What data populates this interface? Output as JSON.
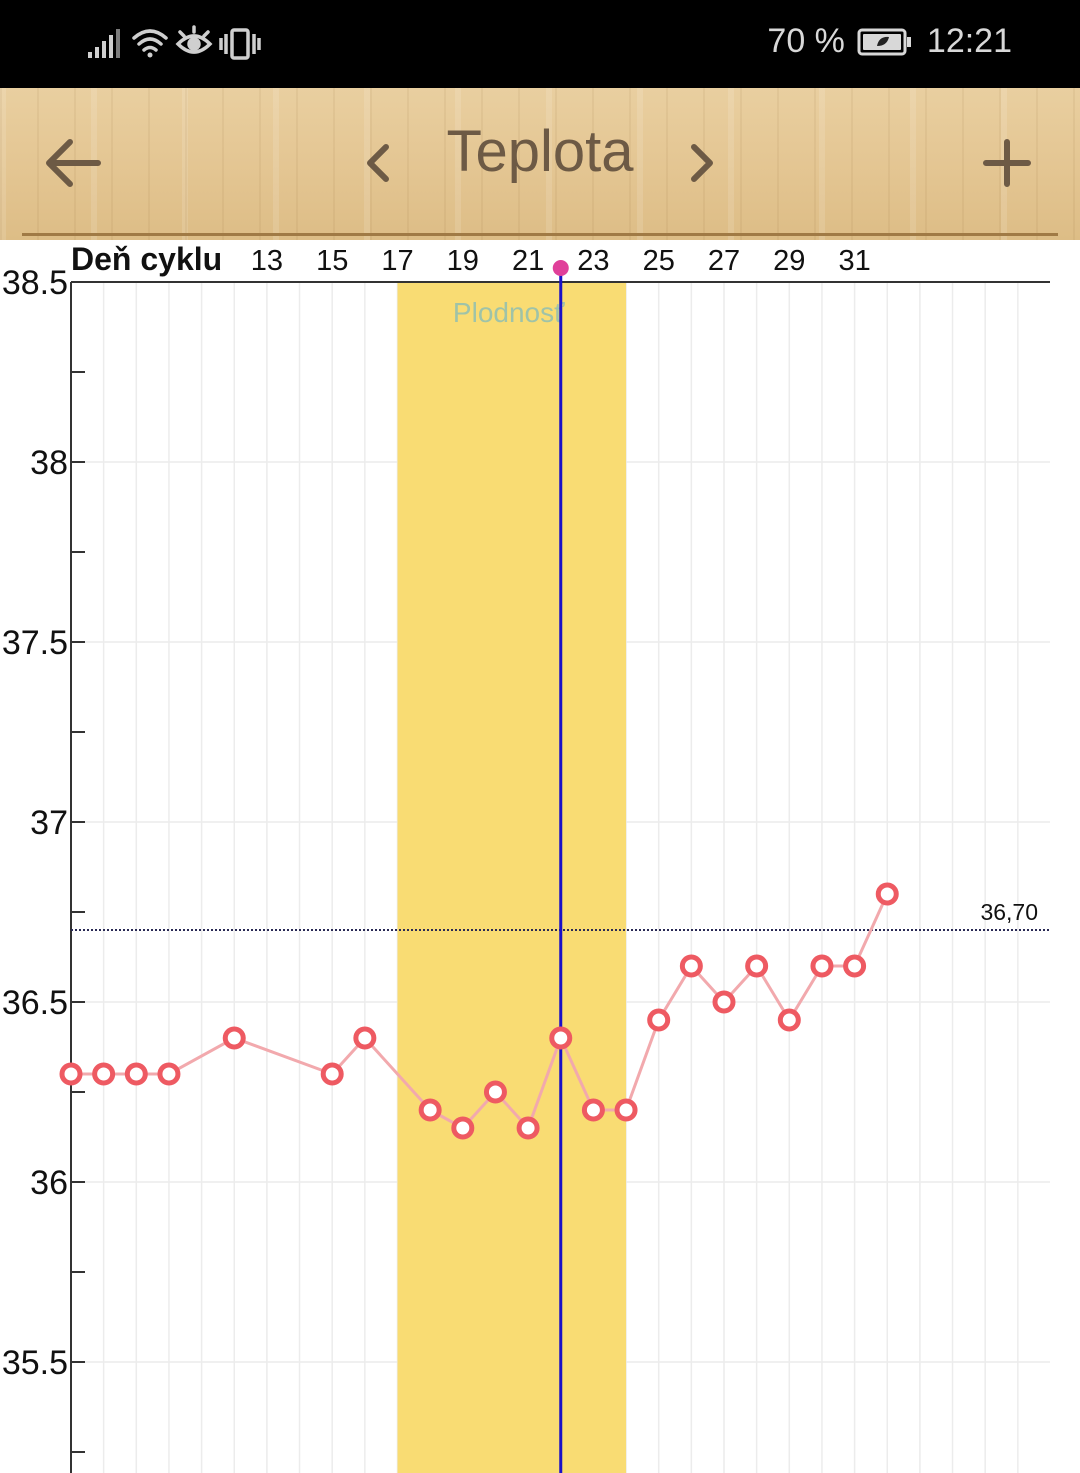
{
  "status_bar": {
    "battery_percent": "70 %",
    "time": "12:21",
    "icons": [
      "signal-icon",
      "wifi-icon",
      "eye-icon",
      "vibrate-icon",
      "battery-icon"
    ]
  },
  "header": {
    "title": "Teplota",
    "icons": [
      "back-arrow-icon",
      "chevron-left-icon",
      "chevron-right-icon",
      "plus-icon"
    ]
  },
  "chart_data": {
    "type": "line",
    "xlabel": "Deň cyklu",
    "x_ticks": [
      13,
      15,
      17,
      19,
      21,
      23,
      25,
      27,
      29,
      31
    ],
    "y_ticks": [
      "38.5",
      "38",
      "37.5",
      "37",
      "36.5",
      "36",
      "35.5"
    ],
    "ylim": [
      35.2,
      38.5
    ],
    "x_range": [
      7,
      37
    ],
    "fertile_window": {
      "label": "Plodnosť",
      "from_day": 17,
      "to_day": 24
    },
    "ovulation_day": 22,
    "threshold": {
      "value": 36.7,
      "label": "36,70"
    },
    "series": [
      {
        "x": [
          7,
          8,
          9,
          10,
          12,
          15,
          16,
          18,
          19,
          20,
          21,
          22,
          23,
          24,
          25,
          26,
          27,
          28,
          29,
          30,
          31,
          32
        ],
        "values": [
          36.3,
          36.3,
          36.3,
          36.3,
          36.4,
          36.3,
          36.4,
          36.2,
          36.15,
          36.25,
          36.15,
          36.4,
          36.2,
          36.2,
          36.45,
          36.6,
          36.5,
          36.6,
          36.45,
          36.6,
          36.6,
          36.8
        ]
      }
    ],
    "colors": {
      "fertile": "#f9dc73",
      "fertile_label": "#9fc3a8",
      "ovulation_line": "#1a10c8",
      "ovulation_marker": "#e0409a",
      "line": "#f2a9ad",
      "point": "#ee5a62",
      "threshold": "#2a2a55",
      "grid": "#ececec"
    }
  }
}
